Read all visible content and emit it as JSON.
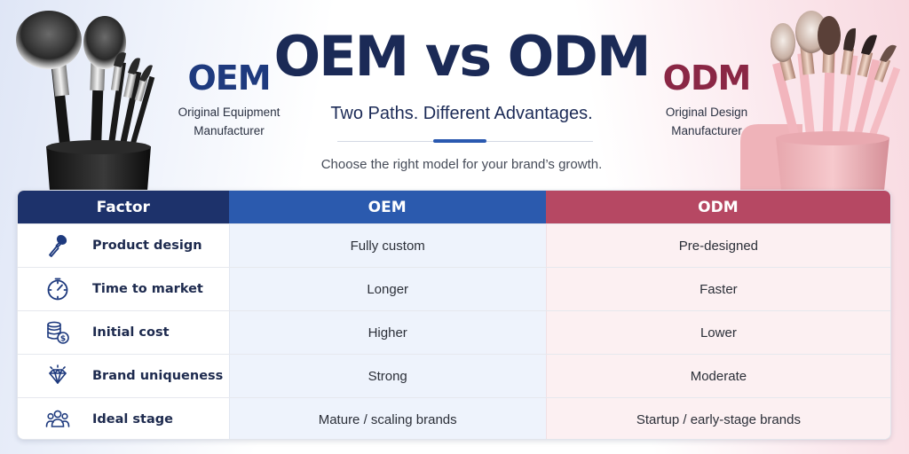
{
  "header": {
    "title": "OEM vs ODM",
    "subtitle": "Two Paths. Different Advantages.",
    "tagline": "Choose the right model for your brand’s growth."
  },
  "left_label": {
    "title": "OEM",
    "line1": "Original Equipment",
    "line2": "Manufacturer"
  },
  "right_label": {
    "title": "ODM",
    "line1": "Original Design",
    "line2": "Manufacturer"
  },
  "table": {
    "columns": [
      "Factor",
      "OEM",
      "ODM"
    ],
    "rows": [
      {
        "icon": "makeup-brush-icon",
        "factor": "Product design",
        "oem": "Fully custom",
        "odm": "Pre-designed"
      },
      {
        "icon": "stopwatch-icon",
        "factor": "Time to market",
        "oem": "Longer",
        "odm": "Faster"
      },
      {
        "icon": "coins-icon",
        "factor": "Initial cost",
        "oem": "Higher",
        "odm": "Lower"
      },
      {
        "icon": "diamond-icon",
        "factor": "Brand uniqueness",
        "oem": "Strong",
        "odm": "Moderate"
      },
      {
        "icon": "people-group-icon",
        "factor": "Ideal stage",
        "oem": "Mature / scaling brands",
        "odm": "Startup / early-stage brands"
      }
    ]
  },
  "colors": {
    "oem_navy": "#1d326b",
    "oem_blue": "#2b5aae",
    "odm_rose": "#b64863",
    "odm_title": "#8a2745"
  }
}
